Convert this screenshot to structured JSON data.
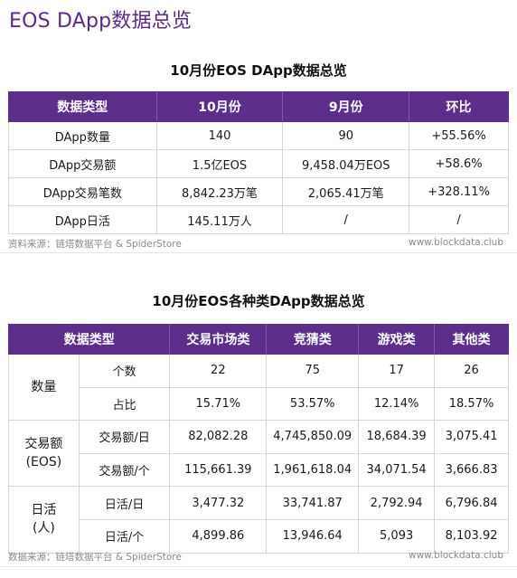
{
  "page_title": "EOS DApp数据总览",
  "table1": {
    "title": "10月份EOS DApp数据总览",
    "headers": [
      "数据类型",
      "10月份",
      "9月份",
      "环比"
    ],
    "rows": [
      [
        "DApp数量",
        "140",
        "90",
        "+55.56%"
      ],
      [
        "DApp交易额",
        "1.5亿EOS",
        "9,458.04万EOS",
        "+58.6%"
      ],
      [
        "DApp交易笔数",
        "8,842.23万笔",
        "2,065.41万笔",
        "+328.11%"
      ],
      [
        "DApp日活",
        "145.11万人",
        "/",
        "/"
      ]
    ],
    "source": "资料来源：链塔数据平台 & SpiderStore",
    "site": "www.blockdata.club"
  },
  "table2": {
    "title": "10月份EOS各种类DApp数据总览",
    "headers": [
      "数据类型",
      "交易市场类",
      "竞猜类",
      "游戏类",
      "其他类"
    ],
    "groups": [
      {
        "name": "数量",
        "rows": [
          {
            "label": "个数",
            "values": [
              "22",
              "75",
              "17",
              "26"
            ]
          },
          {
            "label": "占比",
            "values": [
              "15.71%",
              "53.57%",
              "12.14%",
              "18.57%"
            ]
          }
        ]
      },
      {
        "name": "交易额",
        "name2": "(EOS)",
        "rows": [
          {
            "label": "交易额/日",
            "values": [
              "82,082.28",
              "4,745,850.09",
              "18,684.39",
              "3,075.41"
            ]
          },
          {
            "label": "交易额/个",
            "values": [
              "115,661.39",
              "1,961,618.04",
              "34,071.54",
              "3,666.83"
            ]
          }
        ]
      },
      {
        "name": "日活",
        "name2": "(人)",
        "rows": [
          {
            "label": "日活/日",
            "values": [
              "3,477.32",
              "33,741.87",
              "2,792.94",
              "6,796.84"
            ]
          },
          {
            "label": "日活/个",
            "values": [
              "4,899.86",
              "13,946.64",
              "5,093",
              "8,103.92"
            ]
          }
        ]
      }
    ],
    "source": "数据来源：链塔数据平台 & SpiderStore",
    "site": "www.blockdata.club"
  },
  "colors": {
    "header_bg": "#5b2e8c",
    "title_color": "#5a2a8c"
  }
}
